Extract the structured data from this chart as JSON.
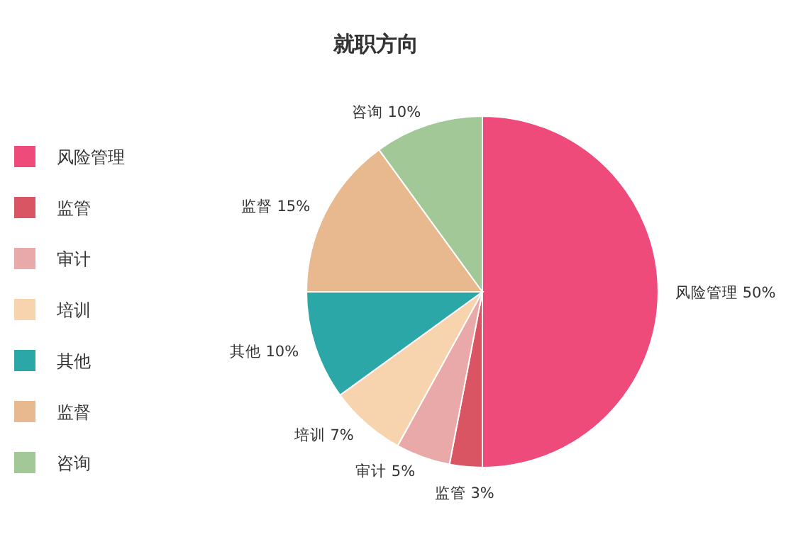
{
  "chart_data": {
    "type": "pie",
    "title": "就职方向",
    "categories": [
      "风险管理",
      "监管",
      "审计",
      "培训",
      "其他",
      "监督",
      "咨询"
    ],
    "values": [
      50,
      3,
      5,
      7,
      10,
      15,
      10
    ],
    "colors": [
      "#ef4b7a",
      "#d95563",
      "#e8a9a8",
      "#f8d4ae",
      "#2aa7a6",
      "#e8b98e",
      "#a2c898"
    ],
    "value_labels": [
      "50%",
      "3%",
      "5%",
      "7%",
      "10%",
      "15%",
      "10%"
    ],
    "legend": "left"
  }
}
